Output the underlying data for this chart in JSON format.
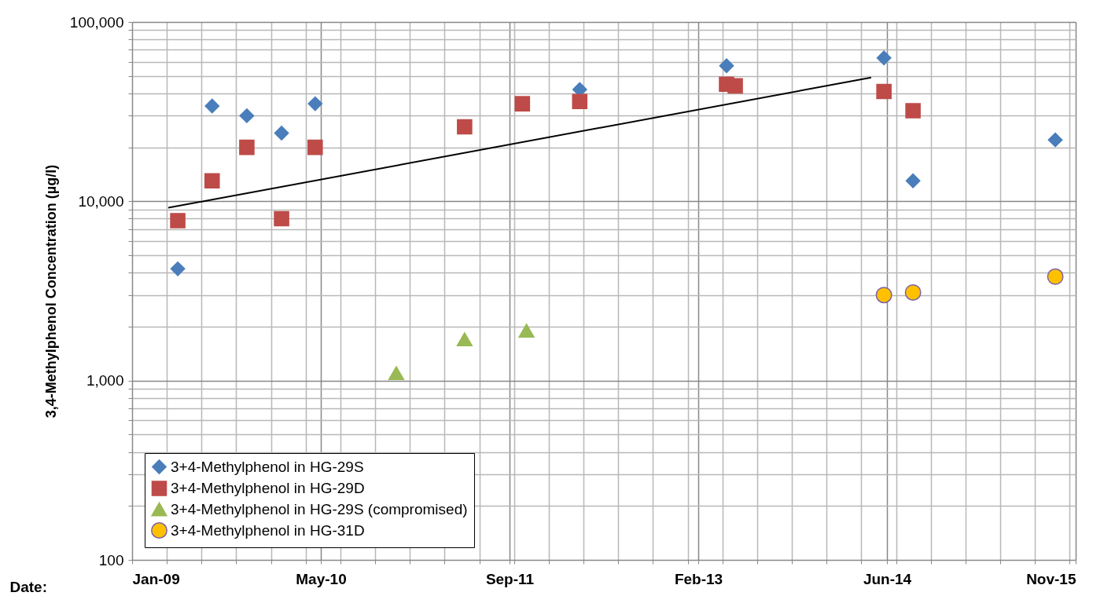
{
  "chart_data": {
    "type": "scatter",
    "xlabel": "Date:",
    "ylabel": "3,4-Methylphenol Concentration (µg/l)",
    "log": "y",
    "grid": true,
    "legend": "bottom left",
    "xlim": [
      "2009-01-01",
      "2015-11-06"
    ],
    "xticks": [
      {
        "value": "2009-01-01",
        "label": "Jan-09"
      },
      {
        "value": "2010-05-16",
        "label": "May-10"
      },
      {
        "value": "2011-09-28",
        "label": "Sep-11"
      },
      {
        "value": "2013-02-09",
        "label": "Feb-13"
      },
      {
        "value": "2014-06-24",
        "label": "Jun-14"
      },
      {
        "value": "2015-11-06",
        "label": "Nov-15"
      },
      {
        "value": "2009-04-03",
        "label": null
      },
      {
        "value": "2009-07-04",
        "label": null
      },
      {
        "value": "2009-10-04",
        "label": null
      },
      {
        "value": "2010-01-04",
        "label": null
      },
      {
        "value": "2010-04-06",
        "label": null
      },
      {
        "value": "2010-07-07",
        "label": null
      },
      {
        "value": "2010-10-07",
        "label": null
      },
      {
        "value": "2011-01-07",
        "label": null
      },
      {
        "value": "2011-04-09",
        "label": null
      },
      {
        "value": "2011-07-10",
        "label": null
      },
      {
        "value": "2011-10-10",
        "label": null
      },
      {
        "value": "2012-01-10",
        "label": null
      },
      {
        "value": "2012-04-11",
        "label": null
      },
      {
        "value": "2012-07-12",
        "label": null
      },
      {
        "value": "2012-10-12",
        "label": null
      },
      {
        "value": "2013-01-12",
        "label": null
      },
      {
        "value": "2013-04-14",
        "label": null
      },
      {
        "value": "2013-07-15",
        "label": null
      },
      {
        "value": "2013-10-15",
        "label": null
      },
      {
        "value": "2014-01-15",
        "label": null
      },
      {
        "value": "2014-04-17",
        "label": null
      },
      {
        "value": "2014-07-18",
        "label": null
      },
      {
        "value": "2014-10-18",
        "label": null
      },
      {
        "value": "2015-01-18",
        "label": null
      },
      {
        "value": "2015-04-20",
        "label": null
      },
      {
        "value": "2015-07-21",
        "label": null
      },
      {
        "value": "2015-10-21",
        "label": null
      }
    ],
    "ylim": [
      100,
      100000
    ],
    "yticks": [
      100,
      {
        "value": 1000,
        "label": "1,000"
      },
      {
        "value": 10000,
        "label": "10,000"
      },
      {
        "value": 100000,
        "label": "100,000"
      },
      {
        "value": 200,
        "label": null
      },
      {
        "value": 300,
        "label": null
      },
      {
        "value": 400,
        "label": null
      },
      {
        "value": 500,
        "label": null
      },
      {
        "value": 600,
        "label": null
      },
      {
        "value": 700,
        "label": null
      },
      {
        "value": 800,
        "label": null
      },
      {
        "value": 900,
        "label": null
      },
      {
        "value": 2000,
        "label": null
      },
      {
        "value": 3000,
        "label": null
      },
      {
        "value": 4000,
        "label": null
      },
      {
        "value": 5000,
        "label": null
      },
      {
        "value": 6000,
        "label": null
      },
      {
        "value": 7000,
        "label": null
      },
      {
        "value": 8000,
        "label": null
      },
      {
        "value": 9000,
        "label": null
      },
      {
        "value": 20000,
        "label": null
      },
      {
        "value": 30000,
        "label": null
      },
      {
        "value": 40000,
        "label": null
      },
      {
        "value": 50000,
        "label": null
      },
      {
        "value": 60000,
        "label": null
      },
      {
        "value": 70000,
        "label": null
      },
      {
        "value": 80000,
        "label": null
      },
      {
        "value": 90000,
        "label": null
      }
    ],
    "series": [
      {
        "name": "3+4-Methylphenol in HG-29S",
        "color": "#4a7ebb",
        "marker": "diamond",
        "x": [
          "2009-05-02",
          "2009-08-01",
          "2009-11-01",
          "2010-02-01",
          "2010-05-01",
          "2012-04-01",
          "2013-04-25",
          "2014-06-16",
          "2014-09-01",
          "2015-09-13"
        ],
        "values": [
          4200,
          34000,
          30000,
          24000,
          35000,
          42000,
          57000,
          63000,
          13000,
          22000
        ]
      },
      {
        "name": "3+4-Methylphenol in HG-29D",
        "color": "#be4b48",
        "marker": "square",
        "x": [
          "2009-05-02",
          "2009-08-01",
          "2009-11-01",
          "2010-02-01",
          "2010-05-01",
          "2011-06-01",
          "2011-11-01",
          "2012-04-01",
          "2013-04-25",
          "2013-05-18",
          "2014-06-16",
          "2014-09-01"
        ],
        "values": [
          7800,
          13000,
          20000,
          8000,
          20000,
          26000,
          35000,
          36000,
          45000,
          44000,
          41000,
          32000
        ]
      },
      {
        "name": "3+4-Methylphenol in HG-29S (compromised)",
        "color": "#98b954",
        "marker": "triangle",
        "x": [
          "2010-12-02",
          "2011-06-01",
          "2011-11-12"
        ],
        "values": [
          1100,
          1700,
          1900
        ]
      },
      {
        "name": "3+4-Methylphenol in HG-31D",
        "color": "#ffc000",
        "marker": "circle",
        "x": [
          "2014-06-16",
          "2014-09-01",
          "2015-09-13"
        ],
        "values": [
          3000,
          3100,
          3800
        ]
      },
      {
        "type": "line",
        "color": "#000000",
        "marker": "none",
        "line_style": "solid",
        "x": [
          "2009-04-07",
          "2014-05-13"
        ],
        "values": [
          9200,
          49000
        ]
      }
    ]
  }
}
